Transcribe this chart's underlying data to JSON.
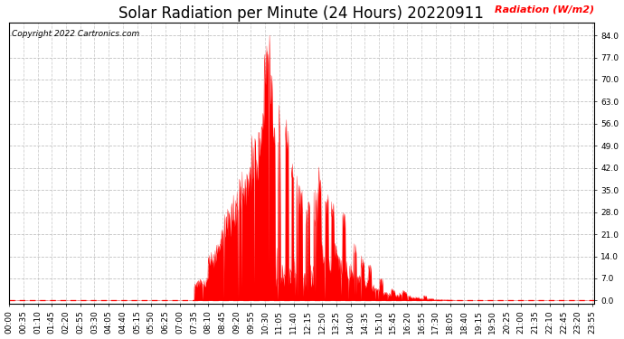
{
  "title": "Solar Radiation per Minute (24 Hours) 20220911",
  "ylabel": "Radiation (W/m2)",
  "copyright_text": "Copyright 2022 Cartronics.com",
  "fill_color": "#FF0000",
  "line_color": "#FF0000",
  "bg_color": "#FFFFFF",
  "grid_color": "#BBBBBB",
  "dashed_line_color": "#FF0000",
  "yticks": [
    0.0,
    7.0,
    14.0,
    21.0,
    28.0,
    35.0,
    42.0,
    49.0,
    56.0,
    63.0,
    70.0,
    77.0,
    84.0
  ],
  "ylim": [
    -1,
    88
  ],
  "title_fontsize": 12,
  "tick_fontsize": 6.5
}
